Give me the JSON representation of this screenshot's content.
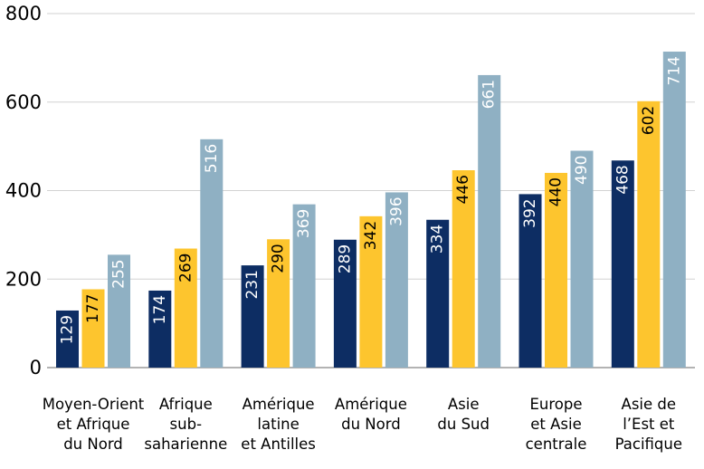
{
  "chart_data": {
    "type": "bar",
    "title": "",
    "xlabel": "",
    "ylabel": "",
    "ylim": [
      0,
      800
    ],
    "yticks": [
      0,
      200,
      400,
      600,
      800
    ],
    "grid": true,
    "legend": "none",
    "categories": [
      [
        "Moyen-Orient",
        "et Afrique",
        "du Nord"
      ],
      [
        "Afrique",
        "sub-",
        "saharienne"
      ],
      [
        "Amérique",
        "latine",
        "et Antilles"
      ],
      [
        "Amérique",
        "du Nord"
      ],
      [
        "Asie",
        "du Sud"
      ],
      [
        "Europe",
        "et Asie",
        "centrale"
      ],
      [
        "Asie de",
        "l’Est et",
        "Pacifique"
      ]
    ],
    "series": [
      {
        "color": "#0d2d63",
        "label_color": "#ffffff",
        "values": [
          129,
          174,
          231,
          289,
          334,
          392,
          468
        ]
      },
      {
        "color": "#fdc52e",
        "label_color": "#000000",
        "values": [
          177,
          269,
          290,
          342,
          446,
          440,
          602
        ]
      },
      {
        "color": "#8fb0c3",
        "label_color": "#ffffff",
        "values": [
          255,
          516,
          369,
          396,
          661,
          490,
          714
        ]
      }
    ]
  }
}
